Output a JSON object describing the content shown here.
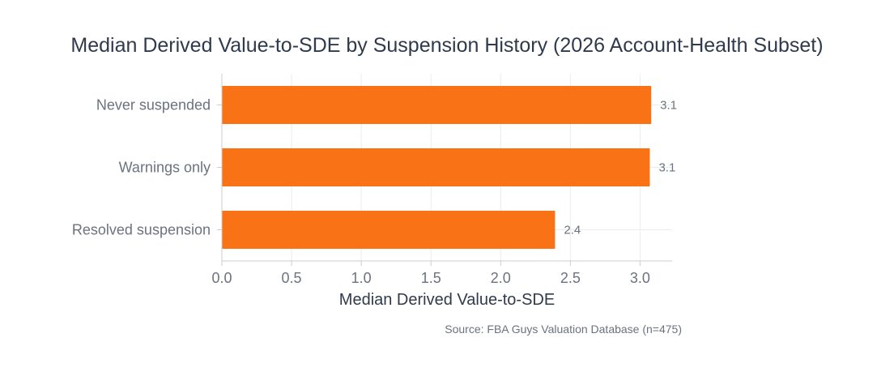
{
  "chart_data": {
    "type": "bar",
    "orientation": "horizontal",
    "title": "Median Derived Value-to-SDE by Suspension History (2026 Account-Health Subset)",
    "xlabel": "Median Derived Value-to-SDE",
    "ylabel": "",
    "categories": [
      "Never suspended",
      "Warnings only",
      "Resolved suspension"
    ],
    "values": [
      3.08,
      3.07,
      2.39
    ],
    "value_labels": [
      "3.1",
      "3.1",
      "2.4"
    ],
    "xlim": [
      0,
      3.23
    ],
    "x_ticks": [
      "0.0",
      "0.5",
      "1.0",
      "1.5",
      "2.0",
      "2.5",
      "3.0"
    ],
    "grid": true,
    "bar_color": "#f97316",
    "source": "Source: FBA Guys Valuation Database (n=475)"
  }
}
